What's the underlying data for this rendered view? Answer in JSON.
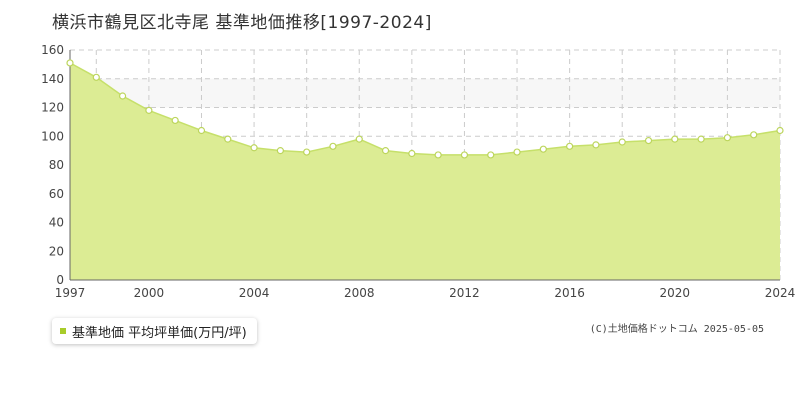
{
  "title": "横浜市鶴見区北寺尾 基準地価推移[1997-2024]",
  "legend": {
    "label": "基準地価 平均坪単価(万円/坪)"
  },
  "copyright": "(C)土地価格ドットコム 2025-05-05",
  "colors": {
    "area_fill": "#dcec94",
    "line": "#c6e06a",
    "marker_fill": "#ffffff",
    "marker_stroke": "#bcd55c",
    "band": "#f7f7f7",
    "grid": "#cccccc",
    "axis": "#666666",
    "legend_swatch": "#a8cc2a"
  },
  "chart_data": {
    "type": "area",
    "title": "横浜市鶴見区北寺尾 基準地価推移[1997-2024]",
    "x": [
      1997,
      1998,
      1999,
      2000,
      2001,
      2002,
      2003,
      2004,
      2005,
      2006,
      2007,
      2008,
      2009,
      2010,
      2011,
      2012,
      2013,
      2014,
      2015,
      2016,
      2017,
      2018,
      2019,
      2020,
      2021,
      2022,
      2023,
      2024
    ],
    "series": [
      {
        "name": "基準地価 平均坪単価(万円/坪)",
        "values": [
          151,
          141,
          128,
          118,
          111,
          104,
          98,
          92,
          90,
          89,
          93,
          98,
          90,
          88,
          87,
          87,
          87,
          89,
          91,
          93,
          94,
          96,
          97,
          98,
          98,
          99,
          101,
          104
        ]
      }
    ],
    "xticks": [
      1997,
      2000,
      2004,
      2008,
      2012,
      2016,
      2020,
      2024
    ],
    "yticks": [
      0,
      20,
      40,
      60,
      80,
      100,
      120,
      140,
      160
    ],
    "xlim": [
      1997,
      2024
    ],
    "ylim": [
      0,
      160
    ],
    "band": [
      120,
      140
    ],
    "grid": true,
    "legend_position": "bottom-left"
  }
}
